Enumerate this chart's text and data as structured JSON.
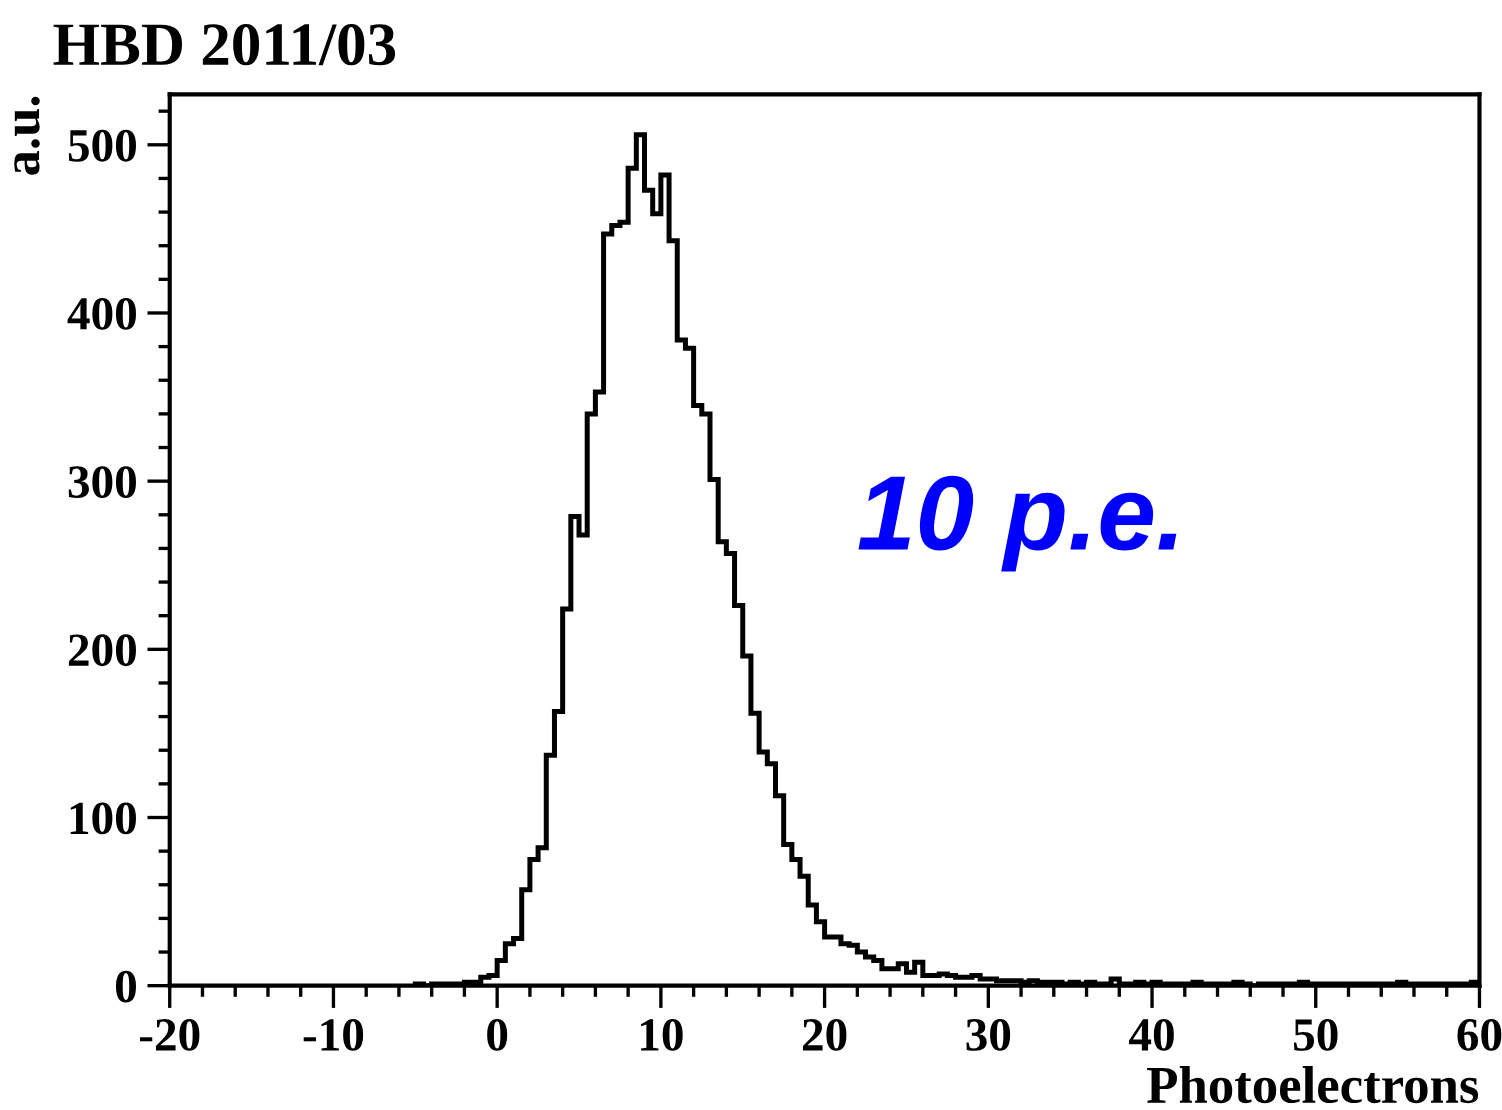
{
  "chart_data": {
    "type": "histogram",
    "title": "HBD 2011/03",
    "xlabel": "Photoelectrons",
    "ylabel": "a.u.",
    "annotations": [
      "10 p.e."
    ],
    "color": "#000000",
    "bins": [
      -5,
      -4.5,
      -4,
      -3.5,
      -3,
      -2.5,
      -2,
      -1.5,
      -1,
      -0.5,
      0,
      0.5,
      1,
      1.5,
      2,
      2.5,
      3,
      3.5,
      4,
      4.5,
      5,
      5.5,
      6,
      6.5,
      7,
      7.5,
      8,
      8.5,
      9,
      9.5,
      10,
      10.5,
      11,
      11.5,
      12,
      12.5,
      13,
      13.5,
      14,
      14.5,
      15,
      15.5,
      16,
      16.5,
      17,
      17.5,
      18,
      18.5,
      19,
      19.5,
      20,
      20.5,
      21,
      21.5,
      22,
      22.5,
      23,
      23.5,
      24,
      24.5,
      25,
      25.5,
      26,
      26.5,
      27,
      27.5,
      28,
      28.5,
      29,
      29.5,
      30,
      30.5,
      31,
      31.5,
      32,
      32.5,
      33,
      33.5,
      34,
      34.5,
      35,
      35.5,
      36,
      36.5,
      37,
      37.5,
      38,
      38.5,
      39,
      39.5,
      40,
      40.5,
      41,
      41.5,
      42,
      42.5,
      43,
      43.5,
      44,
      44.5,
      45,
      45.5,
      46,
      46.5,
      47,
      47.5,
      48,
      48.5,
      49,
      49.5,
      50,
      50.5,
      51,
      51.5,
      52,
      52.5,
      53,
      53.5,
      54,
      54.5,
      55,
      55.5,
      56,
      56.5,
      57,
      57.5,
      58,
      58.5,
      59,
      59.5,
      60
    ],
    "values": [
      1,
      0,
      1,
      1,
      1,
      1,
      2,
      2,
      5,
      6,
      15,
      25,
      28,
      57,
      75,
      82,
      137,
      163,
      224,
      279,
      268,
      340,
      353,
      447,
      452,
      454,
      486,
      506,
      473,
      459,
      482,
      443,
      384,
      379,
      345,
      340,
      301,
      264,
      257,
      226,
      196,
      162,
      139,
      132,
      113,
      84,
      75,
      65,
      48,
      38,
      29,
      29,
      25,
      24,
      20,
      17,
      15,
      10,
      10,
      13,
      8,
      14,
      6,
      6,
      7,
      6,
      5,
      5,
      6,
      4,
      4,
      3,
      3,
      3,
      2,
      3,
      2,
      2,
      2,
      1,
      2,
      1,
      2,
      1,
      1,
      4,
      1,
      1,
      2,
      1,
      2,
      1,
      1,
      1,
      1,
      2,
      1,
      1,
      1,
      1,
      2,
      1,
      0,
      1,
      1,
      1,
      1,
      1,
      2,
      1,
      1,
      1,
      1,
      1,
      1,
      1,
      1,
      1,
      1,
      1,
      2,
      1,
      1,
      1,
      1,
      1,
      1,
      1,
      1,
      2
    ],
    "xlim": [
      -20,
      60
    ],
    "xticks": [
      -20,
      -10,
      0,
      10,
      20,
      30,
      40,
      50,
      60
    ],
    "ylim": [
      0,
      530
    ],
    "yticks": [
      0,
      100,
      200,
      300,
      400,
      500
    ],
    "grid": false,
    "legend": false
  }
}
